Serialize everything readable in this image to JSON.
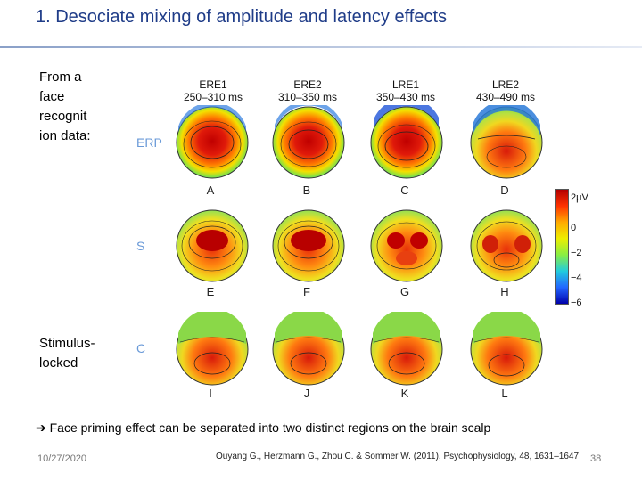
{
  "slide": {
    "title": "1.   Desociate mixing of amplitude and latency effects",
    "side_top": "From a face recognit ion data:",
    "side_bottom": "Stimulus-locked",
    "conclusion_arrow": "➔",
    "conclusion": "Face priming effect can be separated into two distinct regions on the brain scalp",
    "date": "10/27/2020",
    "citation": "Ouyang G., Herzmann G., Zhou C. & Sommer W. (2011), Psychophysiology, 48, 1631–1647",
    "page_number": "38"
  },
  "figure": {
    "columns": [
      {
        "name": "ERE1",
        "window": "250–310 ms"
      },
      {
        "name": "ERE2",
        "window": "310–350 ms"
      },
      {
        "name": "LRE1",
        "window": "350–430 ms"
      },
      {
        "name": "LRE2",
        "window": "430–490 ms"
      }
    ],
    "rows": [
      {
        "label": "ERP",
        "panels": [
          "A",
          "B",
          "C",
          "D"
        ]
      },
      {
        "label": "S",
        "panels": [
          "E",
          "F",
          "G",
          "H"
        ]
      },
      {
        "label": "C",
        "panels": [
          "I",
          "J",
          "K",
          "L"
        ]
      }
    ],
    "colorbar": {
      "unit_label": "2μV",
      "ticks": [
        "0",
        "−2",
        "−4",
        "−6"
      ]
    }
  }
}
